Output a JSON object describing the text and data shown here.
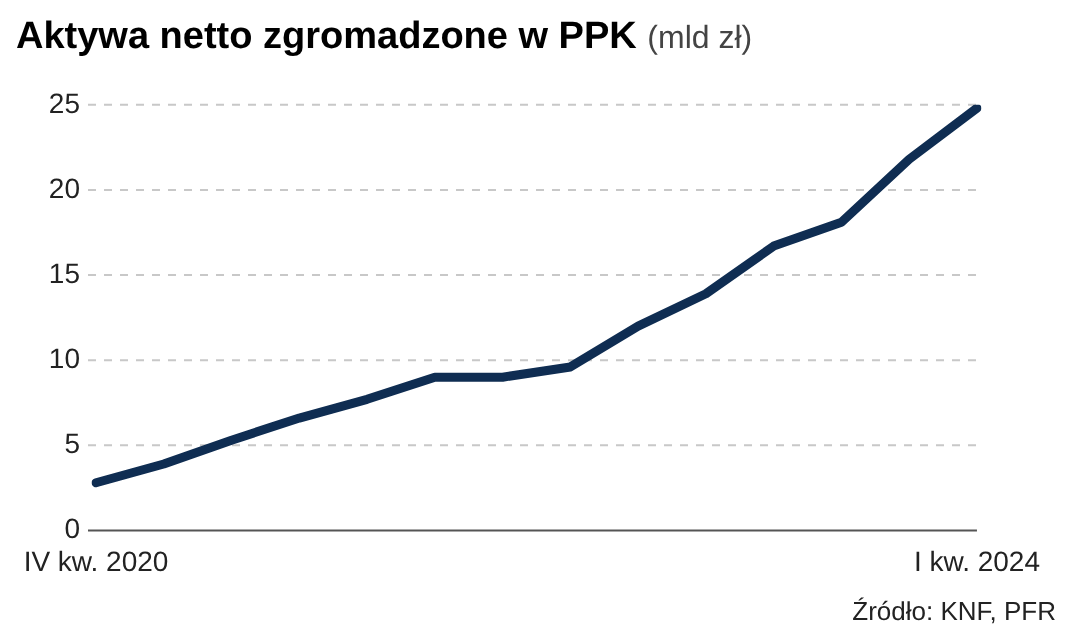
{
  "chart_data": {
    "type": "line",
    "title": "Aktywa netto zgromadzone w PPK",
    "subtitle": "(mld zł)",
    "annotations": [
      "Źródło: KNF, PFR"
    ],
    "categories": [
      "IV kw. 2020",
      null,
      null,
      null,
      null,
      null,
      null,
      null,
      null,
      null,
      null,
      null,
      null,
      "I kw. 2024"
    ],
    "series": [
      {
        "color": "#0f2d52",
        "values": [
          2.8,
          3.9,
          5.3,
          6.6,
          7.7,
          9.0,
          9.0,
          9.6,
          12.0,
          13.9,
          16.7,
          18.1,
          21.8,
          24.8
        ]
      }
    ],
    "ylim": [
      0,
      25
    ],
    "yticks": [
      0,
      5,
      10,
      15,
      20,
      25
    ],
    "grid": "y",
    "legend": false,
    "marker": "none",
    "line_style": "solid"
  }
}
